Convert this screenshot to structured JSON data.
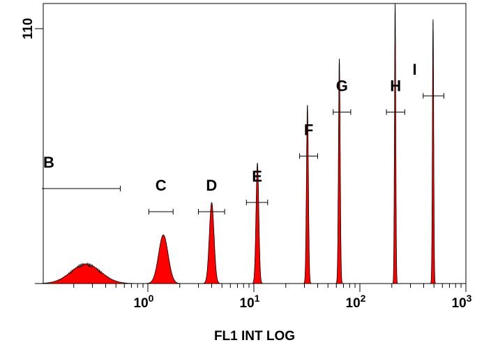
{
  "chart_data": {
    "type": "area",
    "title": "",
    "xlabel": "FL1 INT LOG",
    "ylabel": "",
    "x_scale": "log",
    "xlim": [
      0.1,
      1000
    ],
    "ylim": [
      0,
      110
    ],
    "x_ticks": [
      {
        "value": 1,
        "base": "10",
        "exp": "0"
      },
      {
        "value": 10,
        "base": "10",
        "exp": "1"
      },
      {
        "value": 100,
        "base": "10",
        "exp": "2"
      },
      {
        "value": 1000,
        "base": "10",
        "exp": "3"
      }
    ],
    "y_ticks": [
      {
        "value": 110,
        "label": "110"
      }
    ],
    "grid": false,
    "fill_color": "#ff0000",
    "series": [
      {
        "center": 0.26,
        "height": 9,
        "width_decades": 0.14
      },
      {
        "center": 1.4,
        "height": 21,
        "width_decades": 0.045
      },
      {
        "center": 4.0,
        "height": 35,
        "width_decades": 0.022
      },
      {
        "center": 10.8,
        "height": 52,
        "width_decades": 0.013
      },
      {
        "center": 32,
        "height": 77,
        "width_decades": 0.009
      },
      {
        "center": 64,
        "height": 97,
        "width_decades": 0.008
      },
      {
        "center": 215,
        "height": 121,
        "width_decades": 0.006
      },
      {
        "center": 490,
        "height": 114,
        "width_decades": 0.006
      }
    ],
    "gates": [
      {
        "label": "B",
        "x_start": 0.1,
        "x_end": 0.55,
        "y": 41
      },
      {
        "label": "C",
        "x_start": 1.02,
        "x_end": 1.73,
        "y": 31
      },
      {
        "label": "D",
        "x_start": 3.0,
        "x_end": 5.3,
        "y": 31
      },
      {
        "label": "E",
        "x_start": 8.5,
        "x_end": 13.5,
        "y": 35
      },
      {
        "label": "F",
        "x_start": 27,
        "x_end": 40,
        "y": 55
      },
      {
        "label": "G",
        "x_start": 56,
        "x_end": 82,
        "y": 74
      },
      {
        "label": "H",
        "x_start": 178,
        "x_end": 265,
        "y": 74
      },
      {
        "label": "I",
        "x_start": 395,
        "x_end": 620,
        "y": 81
      }
    ]
  }
}
